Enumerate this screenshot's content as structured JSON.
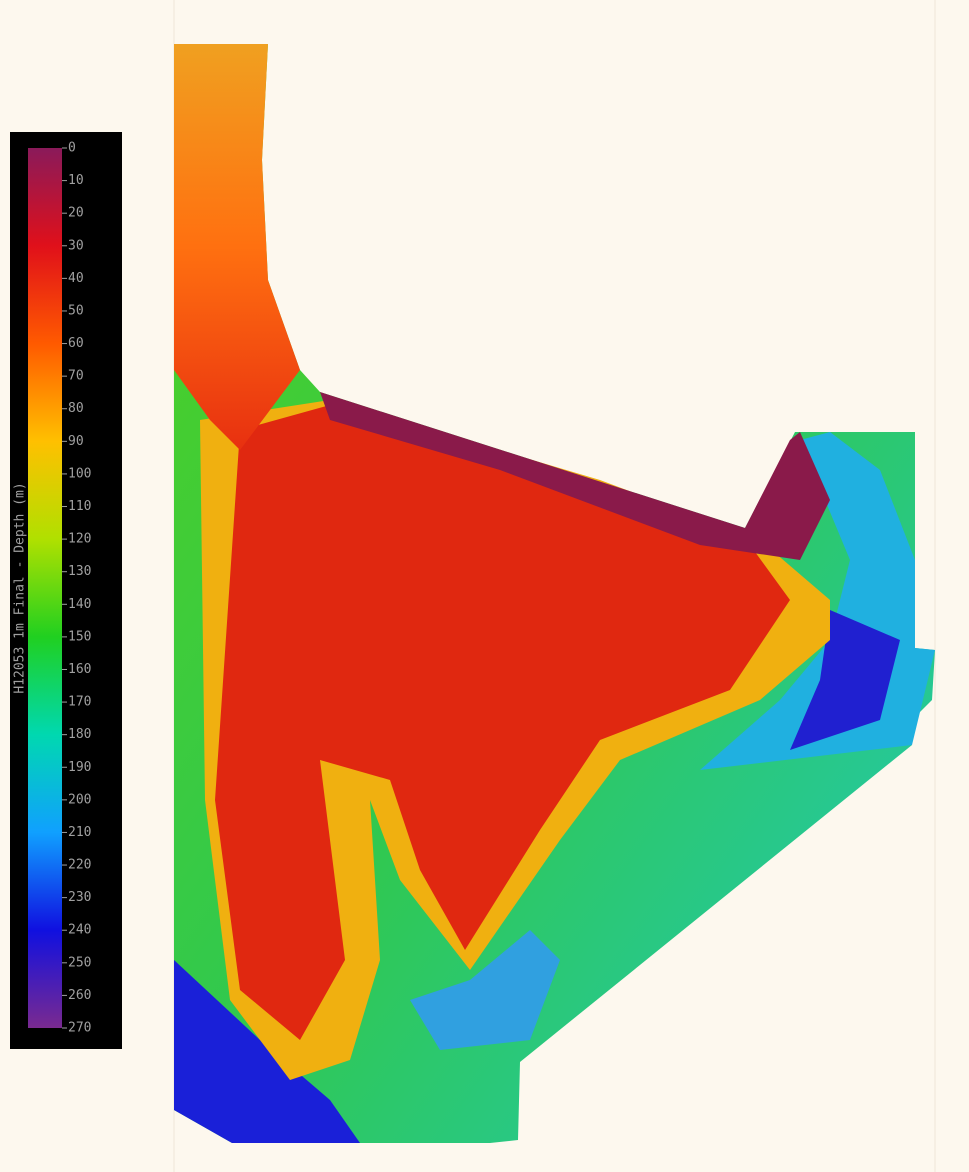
{
  "map": {
    "legend": {
      "title": "H12053 1m Final - Depth (m)",
      "range": [
        0,
        270
      ],
      "ticks": [
        0,
        10,
        20,
        30,
        40,
        50,
        60,
        70,
        80,
        90,
        100,
        110,
        120,
        130,
        140,
        150,
        160,
        170,
        180,
        190,
        200,
        210,
        220,
        230,
        240,
        250,
        260,
        270
      ],
      "colors": [
        "#8a1a5a",
        "#e0101a",
        "#ff5a00",
        "#ffc000",
        "#b0e000",
        "#20d020",
        "#00d8b0",
        "#10a0ff",
        "#1010e0",
        "#7a2a90"
      ]
    }
  }
}
